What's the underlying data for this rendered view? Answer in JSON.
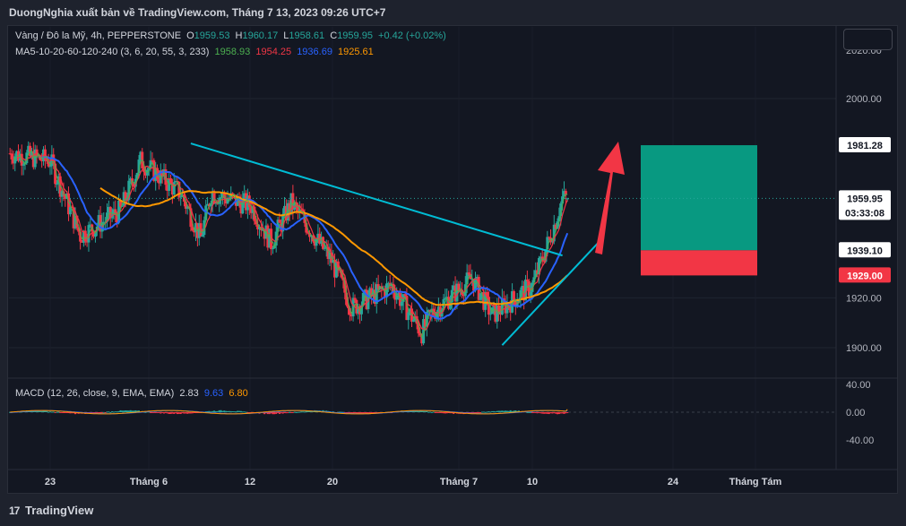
{
  "header": {
    "title": "DuongNghia xuất bản về TradingView.com, Tháng 7 13, 2023 09:26 UTC+7"
  },
  "legend": {
    "symbol": "Vàng / Đô la Mỹ, 4h, PEPPERSTONE",
    "open_label": "O",
    "open": "1959.53",
    "high_label": "H",
    "high": "1960.17",
    "low_label": "L",
    "low": "1958.61",
    "close_label": "C",
    "close": "1959.95",
    "change": "+0.42 (+0.02%)",
    "ma_label": "MA5-10-20-60-120-240 (3, 6, 20, 55, 3, 233)",
    "ma_values": [
      "1958.93",
      "1954.25",
      "1936.69",
      "1925.61"
    ],
    "ma_colors": [
      "#4caf50",
      "#f23645",
      "#2962ff",
      "#ff9800"
    ],
    "macd_label": "MACD (12, 26, close, 9, EMA, EMA)",
    "macd_values": [
      "2.83",
      "9.63",
      "6.80"
    ],
    "macd_colors": [
      "#d1d4dc",
      "#2962ff",
      "#ff9800"
    ]
  },
  "price_axis": {
    "ticks": [
      "2000.00",
      "1920.00",
      "1900.00"
    ],
    "top_partial": "2020.00",
    "badges": [
      {
        "text": "1981.28",
        "bg": "#ffffff",
        "fg": "#131722"
      },
      {
        "text": "1959.95",
        "bg": "#ffffff",
        "fg": "#131722"
      },
      {
        "text": "03:33:08",
        "bg": "#ffffff",
        "fg": "#131722"
      },
      {
        "text": "1939.10",
        "bg": "#ffffff",
        "fg": "#131722"
      },
      {
        "text": "1929.00",
        "bg": "#f23645",
        "fg": "#ffffff"
      }
    ]
  },
  "macd_axis": {
    "ticks": [
      "40.00",
      "0.00",
      "-40.00"
    ]
  },
  "time_axis": {
    "labels": [
      "23",
      "Tháng 6",
      "12",
      "20",
      "Tháng 7",
      "10",
      "24",
      "Tháng Tám"
    ]
  },
  "footer": {
    "brand": "TradingView"
  },
  "colors": {
    "up": "#26a69a",
    "down": "#f23645",
    "trendline": "#00bcd4",
    "target": "#089981",
    "stop": "#f23645",
    "arrow": "#f23645"
  },
  "chart_data": {
    "type": "candlestick",
    "symbol": "XAUUSD",
    "timeframe": "4h",
    "ylim": [
      1890,
      2028
    ],
    "approx_close_path": [
      {
        "date": "2023-05-19",
        "close": 1978
      },
      {
        "date": "2023-05-23",
        "close": 1975
      },
      {
        "date": "2023-05-26",
        "close": 1945
      },
      {
        "date": "2023-05-30",
        "close": 1955
      },
      {
        "date": "2023-06-01",
        "close": 1975
      },
      {
        "date": "2023-06-05",
        "close": 1962
      },
      {
        "date": "2023-06-07",
        "close": 1944
      },
      {
        "date": "2023-06-08",
        "close": 1962
      },
      {
        "date": "2023-06-12",
        "close": 1957
      },
      {
        "date": "2023-06-14",
        "close": 1942
      },
      {
        "date": "2023-06-16",
        "close": 1958
      },
      {
        "date": "2023-06-20",
        "close": 1935
      },
      {
        "date": "2023-06-22",
        "close": 1916
      },
      {
        "date": "2023-06-26",
        "close": 1925
      },
      {
        "date": "2023-06-29",
        "close": 1906
      },
      {
        "date": "2023-06-30",
        "close": 1914
      },
      {
        "date": "2023-07-04",
        "close": 1928
      },
      {
        "date": "2023-07-06",
        "close": 1913
      },
      {
        "date": "2023-07-10",
        "close": 1925
      },
      {
        "date": "2023-07-12",
        "close": 1947
      },
      {
        "date": "2023-07-13",
        "close": 1959.95
      }
    ],
    "moving_averages": [
      {
        "name": "MA 3",
        "last": 1958.93
      },
      {
        "name": "MA 6",
        "last": 1954.25
      },
      {
        "name": "MA 55",
        "last": 1936.69
      },
      {
        "name": "MA 233",
        "last": 1925.61
      }
    ],
    "annotations": {
      "descending_trendline": [
        {
          "date": "2023-06-06",
          "price": 1982
        },
        {
          "date": "2023-07-13",
          "price": 1937
        }
      ],
      "ascending_trendline": [
        {
          "date": "2023-07-07",
          "price": 1901
        },
        {
          "date": "2023-07-17",
          "price": 1944
        }
      ],
      "long_position": {
        "entry": 1939.1,
        "target": 1981.28,
        "stop": 1929.0
      }
    },
    "macd": {
      "macd": 2.83,
      "signal": 9.63,
      "histogram": 6.8,
      "ylim": [
        -40,
        40
      ]
    }
  }
}
